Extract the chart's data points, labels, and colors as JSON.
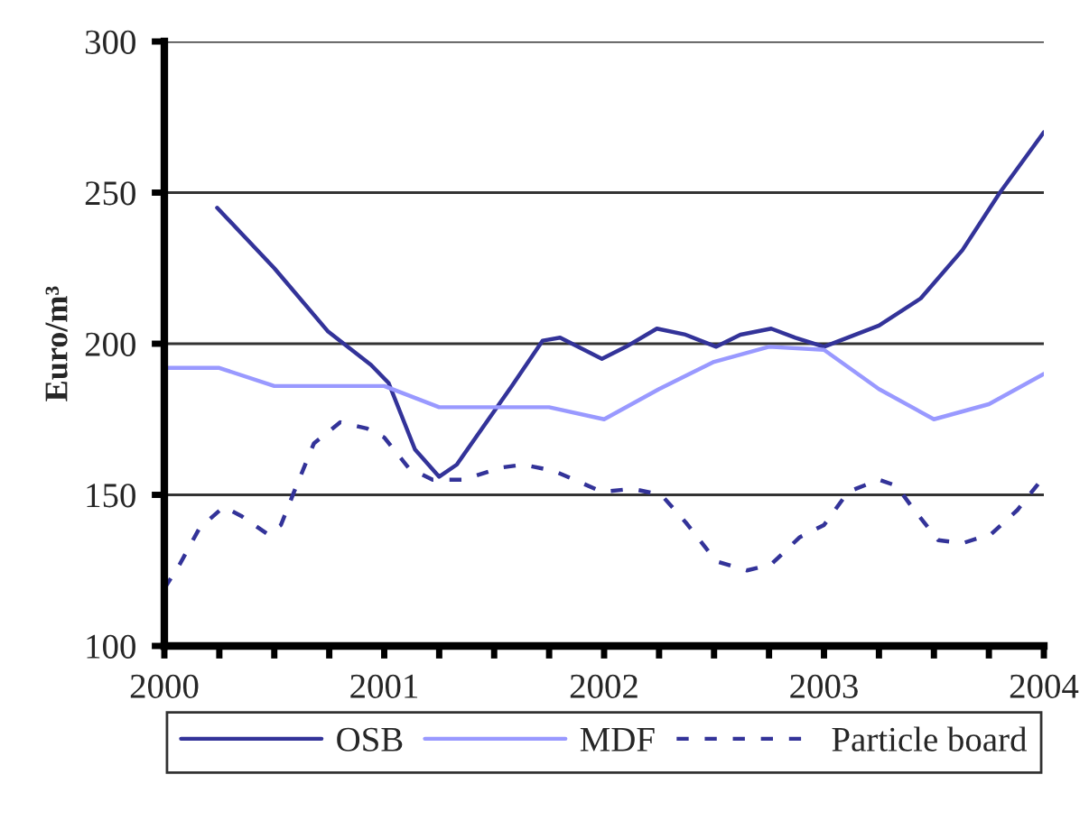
{
  "chart_data": {
    "type": "line",
    "ylabel": "Euro/m³",
    "xlim": [
      2000,
      2004
    ],
    "ylim": [
      100,
      300
    ],
    "yticks": [
      100,
      150,
      200,
      250,
      300
    ],
    "xticks": [
      {
        "value": 2000,
        "label": "2000"
      },
      {
        "value": 2000.25,
        "label": null
      },
      {
        "value": 2000.5,
        "label": null
      },
      {
        "value": 2000.75,
        "label": null
      },
      {
        "value": 2001,
        "label": "2001"
      },
      {
        "value": 2001.25,
        "label": null
      },
      {
        "value": 2001.5,
        "label": null
      },
      {
        "value": 2001.75,
        "label": null
      },
      {
        "value": 2002,
        "label": "2002"
      },
      {
        "value": 2002.25,
        "label": null
      },
      {
        "value": 2002.5,
        "label": null
      },
      {
        "value": 2002.75,
        "label": null
      },
      {
        "value": 2003,
        "label": "2003"
      },
      {
        "value": 2003.25,
        "label": null
      },
      {
        "value": 2003.5,
        "label": null
      },
      {
        "value": 2003.75,
        "label": null
      },
      {
        "value": 2004,
        "label": "2004"
      }
    ],
    "grid": "y",
    "legend": "bottom",
    "series": [
      {
        "name": "OSB",
        "color": "#333399",
        "line_style": "solid",
        "x": [
          2000.24,
          2000.5,
          2000.745,
          2000.94,
          2001.02,
          2001.14,
          2001.25,
          2001.33,
          2001.58,
          2001.72,
          2001.8,
          2001.99,
          2002.1,
          2002.24,
          2002.37,
          2002.51,
          2002.62,
          2002.76,
          2002.87,
          2003.0,
          2003.25,
          2003.44,
          2003.63,
          2003.8,
          2004.0
        ],
        "values": [
          245,
          225,
          204,
          193,
          187,
          165,
          156,
          160,
          186,
          201,
          202,
          195,
          199,
          205,
          203,
          199,
          203,
          205,
          202,
          199,
          206,
          215,
          231,
          250,
          270
        ]
      },
      {
        "name": "MDF",
        "color": "#9999ff",
        "line_style": "solid",
        "x": [
          2000,
          2000.25,
          2000.5,
          2000.75,
          2001,
          2001.25,
          2001.5,
          2001.75,
          2002,
          2002.25,
          2002.5,
          2002.75,
          2003,
          2003.25,
          2003.5,
          2003.75,
          2004
        ],
        "values": [
          192,
          192,
          186,
          186,
          186,
          179,
          179,
          179,
          175,
          185,
          194,
          199,
          198,
          185,
          175,
          180,
          190
        ]
      },
      {
        "name": "Particle board",
        "color": "#333399",
        "line_style": "dashed",
        "x": [
          2000.0,
          2000.07,
          2000.16,
          2000.27,
          2000.35,
          2000.47,
          2000.53,
          2000.59,
          2000.68,
          2000.8,
          2000.92,
          2001.0,
          2001.11,
          2001.22,
          2001.36,
          2001.53,
          2001.63,
          2001.77,
          2001.99,
          2002.13,
          2002.26,
          2002.37,
          2002.51,
          2002.65,
          2002.76,
          2002.89,
          2003.0,
          2003.11,
          2003.25,
          2003.33,
          2003.41,
          2003.52,
          2003.63,
          2003.76,
          2003.88,
          2004.0
        ],
        "values": [
          119,
          127,
          139,
          146,
          143,
          137,
          140,
          151,
          167,
          174,
          172,
          169,
          159,
          155,
          155,
          159,
          160,
          158,
          151,
          152,
          150,
          141,
          128,
          125,
          127,
          136,
          140,
          151,
          155,
          153,
          145,
          135,
          134,
          137,
          145,
          156
        ]
      }
    ]
  }
}
